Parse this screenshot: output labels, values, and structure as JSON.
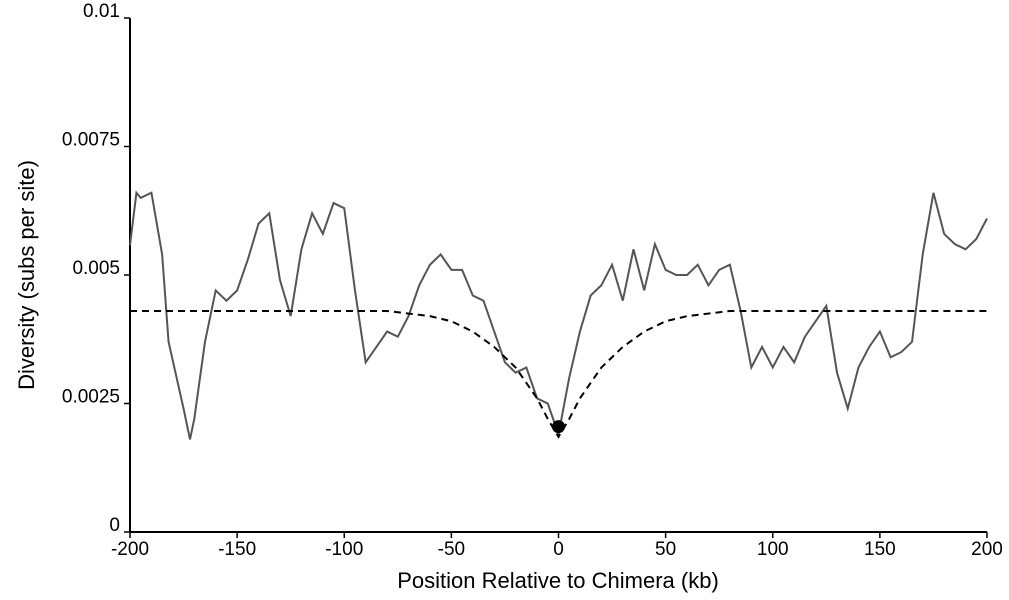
{
  "chart_data": {
    "type": "line",
    "x_label": "Position Relative to Chimera (kb)",
    "y_label": "Diversity (subs per site)",
    "xlim": [
      -200,
      200
    ],
    "xticks": [
      -200,
      -150,
      -100,
      -50,
      0,
      50,
      100,
      150,
      200
    ],
    "ylim": [
      0,
      0.01
    ],
    "yticks": [
      0,
      0.0025,
      0.005,
      0.0075,
      0.01
    ],
    "grid": false,
    "series": [
      {
        "color": "#555555",
        "linestyle": "solid",
        "marker": false,
        "x": [
          -200,
          -197,
          -195,
          -190,
          -185,
          -182,
          -175,
          -172,
          -170,
          -165,
          -160,
          -155,
          -150,
          -145,
          -140,
          -135,
          -130,
          -125,
          -120,
          -115,
          -110,
          -105,
          -100,
          -95,
          -90,
          -85,
          -80,
          -75,
          -70,
          -65,
          -60,
          -55,
          -50,
          -45,
          -40,
          -35,
          -30,
          -25,
          -20,
          -15,
          -10,
          -5,
          0,
          5,
          10,
          15,
          20,
          25,
          30,
          35,
          40,
          45,
          50,
          55,
          60,
          65,
          70,
          75,
          80,
          85,
          90,
          95,
          100,
          105,
          110,
          115,
          120,
          125,
          130,
          135,
          140,
          145,
          150,
          155,
          160,
          165,
          170,
          175,
          180,
          185,
          190,
          195,
          200
        ],
        "values": [
          0.00558,
          0.0066,
          0.0065,
          0.0066,
          0.0054,
          0.0037,
          0.0024,
          0.0018,
          0.0022,
          0.0037,
          0.0047,
          0.0045,
          0.0047,
          0.0053,
          0.006,
          0.0062,
          0.0049,
          0.0042,
          0.0055,
          0.0062,
          0.0058,
          0.0064,
          0.0063,
          0.0047,
          0.0033,
          0.0036,
          0.0039,
          0.0038,
          0.0042,
          0.0048,
          0.0052,
          0.0054,
          0.0051,
          0.0051,
          0.0046,
          0.0045,
          0.0039,
          0.0033,
          0.0031,
          0.0032,
          0.0026,
          0.0025,
          0.0019,
          0.003,
          0.0039,
          0.0046,
          0.0048,
          0.0052,
          0.0045,
          0.0055,
          0.0047,
          0.0056,
          0.0051,
          0.005,
          0.005,
          0.0052,
          0.0048,
          0.0051,
          0.0052,
          0.0043,
          0.0032,
          0.0036,
          0.0032,
          0.0036,
          0.0033,
          0.0038,
          0.0041,
          0.0044,
          0.0031,
          0.0024,
          0.0032,
          0.0036,
          0.0039,
          0.0034,
          0.0035,
          0.0037,
          0.0054,
          0.0066,
          0.0058,
          0.0056,
          0.0055,
          0.0057,
          0.0061
        ]
      },
      {
        "color": "#000000",
        "linestyle": "dashed",
        "marker": false,
        "x": [
          -200,
          -80,
          -60,
          -50,
          -40,
          -30,
          -20,
          -10,
          -5,
          0,
          5,
          10,
          20,
          30,
          40,
          50,
          60,
          80,
          200
        ],
        "values": [
          0.0043,
          0.0043,
          0.0042,
          0.0041,
          0.0039,
          0.0036,
          0.0032,
          0.0026,
          0.0022,
          0.00185,
          0.0022,
          0.0026,
          0.0032,
          0.0036,
          0.0039,
          0.0041,
          0.0042,
          0.0043,
          0.0043
        ]
      },
      {
        "color": "#000000",
        "linestyle": "none",
        "marker": true,
        "x": [
          0
        ],
        "values": [
          0.00205
        ]
      }
    ]
  }
}
